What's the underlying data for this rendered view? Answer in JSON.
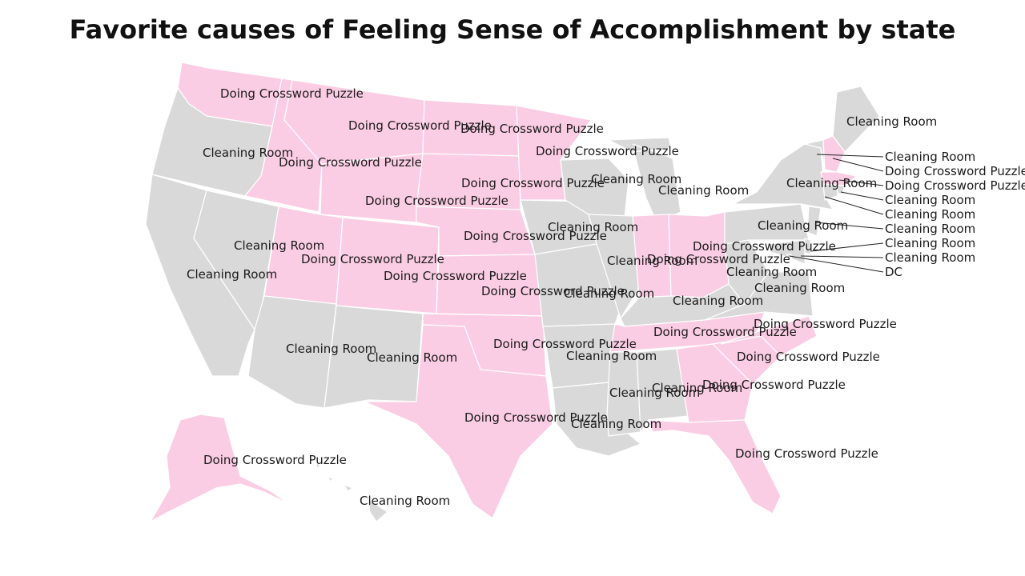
{
  "title": "Favorite causes of Feeling Sense of Accomplishment by state",
  "legend_colors": {
    "Doing Crossword Puzzle": "#fbcde4",
    "Cleaning Room": "#d9d9d9"
  },
  "states": [
    {
      "id": "WA",
      "label": "Doing Crossword Puzzle"
    },
    {
      "id": "OR",
      "label": "Cleaning Room"
    },
    {
      "id": "CA",
      "label": "Cleaning Room"
    },
    {
      "id": "NV",
      "label": "Cleaning Room"
    },
    {
      "id": "ID",
      "label": "Doing Crossword Puzzle"
    },
    {
      "id": "MT",
      "label": "Doing Crossword Puzzle"
    },
    {
      "id": "WY",
      "label": "Doing Crossword Puzzle"
    },
    {
      "id": "UT",
      "label": "Doing Crossword Puzzle"
    },
    {
      "id": "CO",
      "label": "Doing Crossword Puzzle"
    },
    {
      "id": "AZ",
      "label": "Cleaning Room"
    },
    {
      "id": "NM",
      "label": "Cleaning Room"
    },
    {
      "id": "ND",
      "label": "Doing Crossword Puzzle"
    },
    {
      "id": "SD",
      "label": "Doing Crossword Puzzle"
    },
    {
      "id": "NE",
      "label": "Doing Crossword Puzzle"
    },
    {
      "id": "KS",
      "label": "Doing Crossword Puzzle"
    },
    {
      "id": "OK",
      "label": "Doing Crossword Puzzle"
    },
    {
      "id": "TX",
      "label": "Doing Crossword Puzzle"
    },
    {
      "id": "MN",
      "label": "Doing Crossword Puzzle"
    },
    {
      "id": "IA",
      "label": "Cleaning Room"
    },
    {
      "id": "MO",
      "label": "Cleaning Room"
    },
    {
      "id": "AR",
      "label": "Cleaning Room"
    },
    {
      "id": "LA",
      "label": "Cleaning Room"
    },
    {
      "id": "WI",
      "label": "Cleaning Room"
    },
    {
      "id": "IL",
      "label": "Cleaning Room"
    },
    {
      "id": "MI",
      "label": "Cleaning Room"
    },
    {
      "id": "IN",
      "label": "Doing Crossword Puzzle"
    },
    {
      "id": "OH",
      "label": "Doing Crossword Puzzle"
    },
    {
      "id": "KY",
      "label": "Cleaning Room"
    },
    {
      "id": "TN",
      "label": "Doing Crossword Puzzle"
    },
    {
      "id": "MS",
      "label": "Cleaning Room"
    },
    {
      "id": "AL",
      "label": "Cleaning Room"
    },
    {
      "id": "GA",
      "label": "Doing Crossword Puzzle"
    },
    {
      "id": "FL",
      "label": "Doing Crossword Puzzle"
    },
    {
      "id": "SC",
      "label": "Doing Crossword Puzzle"
    },
    {
      "id": "NC",
      "label": "Doing Crossword Puzzle"
    },
    {
      "id": "VA",
      "label": "Cleaning Room"
    },
    {
      "id": "WV",
      "label": "Cleaning Room"
    },
    {
      "id": "PA",
      "label": "Cleaning Room"
    },
    {
      "id": "NY",
      "label": "Cleaning Room"
    },
    {
      "id": "ME",
      "label": "Cleaning Room"
    },
    {
      "id": "VT",
      "label": "Cleaning Room"
    },
    {
      "id": "NH",
      "label": "Doing Crossword Puzzle"
    },
    {
      "id": "MA",
      "label": "Doing Crossword Puzzle"
    },
    {
      "id": "RI",
      "label": "Cleaning Room"
    },
    {
      "id": "CT",
      "label": "Cleaning Room"
    },
    {
      "id": "NJ",
      "label": "Cleaning Room"
    },
    {
      "id": "DE",
      "label": "Cleaning Room"
    },
    {
      "id": "MD",
      "label": "Cleaning Room"
    },
    {
      "id": "DC",
      "label": "DC"
    },
    {
      "id": "AK",
      "label": "Doing Crossword Puzzle"
    },
    {
      "id": "HI",
      "label": "Cleaning Room"
    }
  ]
}
